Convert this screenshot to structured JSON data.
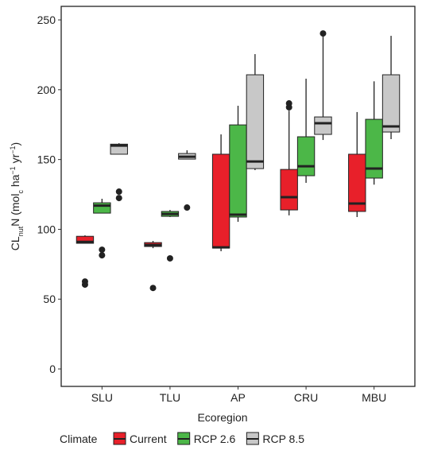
{
  "chart_data": {
    "type": "boxplot",
    "ylabel_parts": [
      {
        "text": "CL"
      },
      {
        "text": "nut",
        "shift": "sub"
      },
      {
        "text": "N (mol"
      },
      {
        "text": "c",
        "shift": "sub"
      },
      {
        "text": " ha"
      },
      {
        "text": "−1",
        "shift": "super"
      },
      {
        "text": " yr"
      },
      {
        "text": "−1",
        "shift": "super"
      },
      {
        "text": ")"
      }
    ],
    "xlabel": "Ecoregion",
    "legend_title": "Climate",
    "categories": [
      "SLU",
      "TLU",
      "AP",
      "CRU",
      "MBU"
    ],
    "ylim": [
      -12.5,
      259.7
    ],
    "yticks": [
      0,
      50,
      100,
      150,
      200,
      250
    ],
    "series": [
      {
        "name": "Current",
        "color": "#e8202a",
        "boxes": [
          {
            "whislo": 90,
            "q1": 90,
            "med": 91,
            "q3": 95,
            "whishi": 95.7,
            "outliers": [
              62.6,
              60.4
            ]
          },
          {
            "whislo": 86.5,
            "q1": 87.7,
            "med": 88.8,
            "q3": 90.5,
            "whishi": 91.7,
            "outliers": [
              58
            ]
          },
          {
            "whislo": 84.3,
            "q1": 86.6,
            "med": 87.1,
            "q3": 153.8,
            "whishi": 168,
            "outliers": []
          },
          {
            "whislo": 110,
            "q1": 113.9,
            "med": 123,
            "q3": 142.9,
            "whishi": 185,
            "outliers": [
              190.2,
              187.4
            ]
          },
          {
            "whislo": 108.8,
            "q1": 112.8,
            "med": 118.5,
            "q3": 153.8,
            "whishi": 184,
            "outliers": []
          }
        ]
      },
      {
        "name": "RCP 2.6",
        "color": "#4cb748",
        "boxes": [
          {
            "whislo": 111.6,
            "q1": 111.6,
            "med": 117,
            "q3": 119,
            "whishi": 121.9,
            "outliers": [
              85.4,
              81.4
            ]
          },
          {
            "whislo": 108.8,
            "q1": 109.3,
            "med": 111,
            "q3": 112.8,
            "whishi": 113.9,
            "outliers": [
              79.2
            ]
          },
          {
            "whislo": 105.4,
            "q1": 108.8,
            "med": 110.5,
            "q3": 174.8,
            "whishi": 188.5,
            "outliers": []
          },
          {
            "whislo": 133.3,
            "q1": 138.4,
            "med": 145.2,
            "q3": 166.3,
            "whishi": 207.9,
            "outliers": []
          },
          {
            "whislo": 132,
            "q1": 136.7,
            "med": 143.5,
            "q3": 178.8,
            "whishi": 206,
            "outliers": []
          }
        ]
      },
      {
        "name": "RCP 8.5",
        "color": "#c8c8c8",
        "boxes": [
          {
            "whislo": 153.8,
            "q1": 153.8,
            "med": 160,
            "q3": 161,
            "whishi": 161.7,
            "outliers": [
              127,
              122.4
            ]
          },
          {
            "whislo": 150.3,
            "q1": 150.3,
            "med": 152,
            "q3": 154.3,
            "whishi": 156.6,
            "outliers": [
              115.6
            ]
          },
          {
            "whislo": 142.4,
            "q1": 143.5,
            "med": 148.6,
            "q3": 210.7,
            "whishi": 225.5,
            "outliers": []
          },
          {
            "whislo": 164,
            "q1": 168,
            "med": 176,
            "q3": 180.5,
            "whishi": 239,
            "outliers": [
              240.3
            ]
          },
          {
            "whislo": 164.6,
            "q1": 169.7,
            "med": 173.7,
            "q3": 210.7,
            "whishi": 238.6,
            "outliers": []
          }
        ]
      }
    ]
  }
}
